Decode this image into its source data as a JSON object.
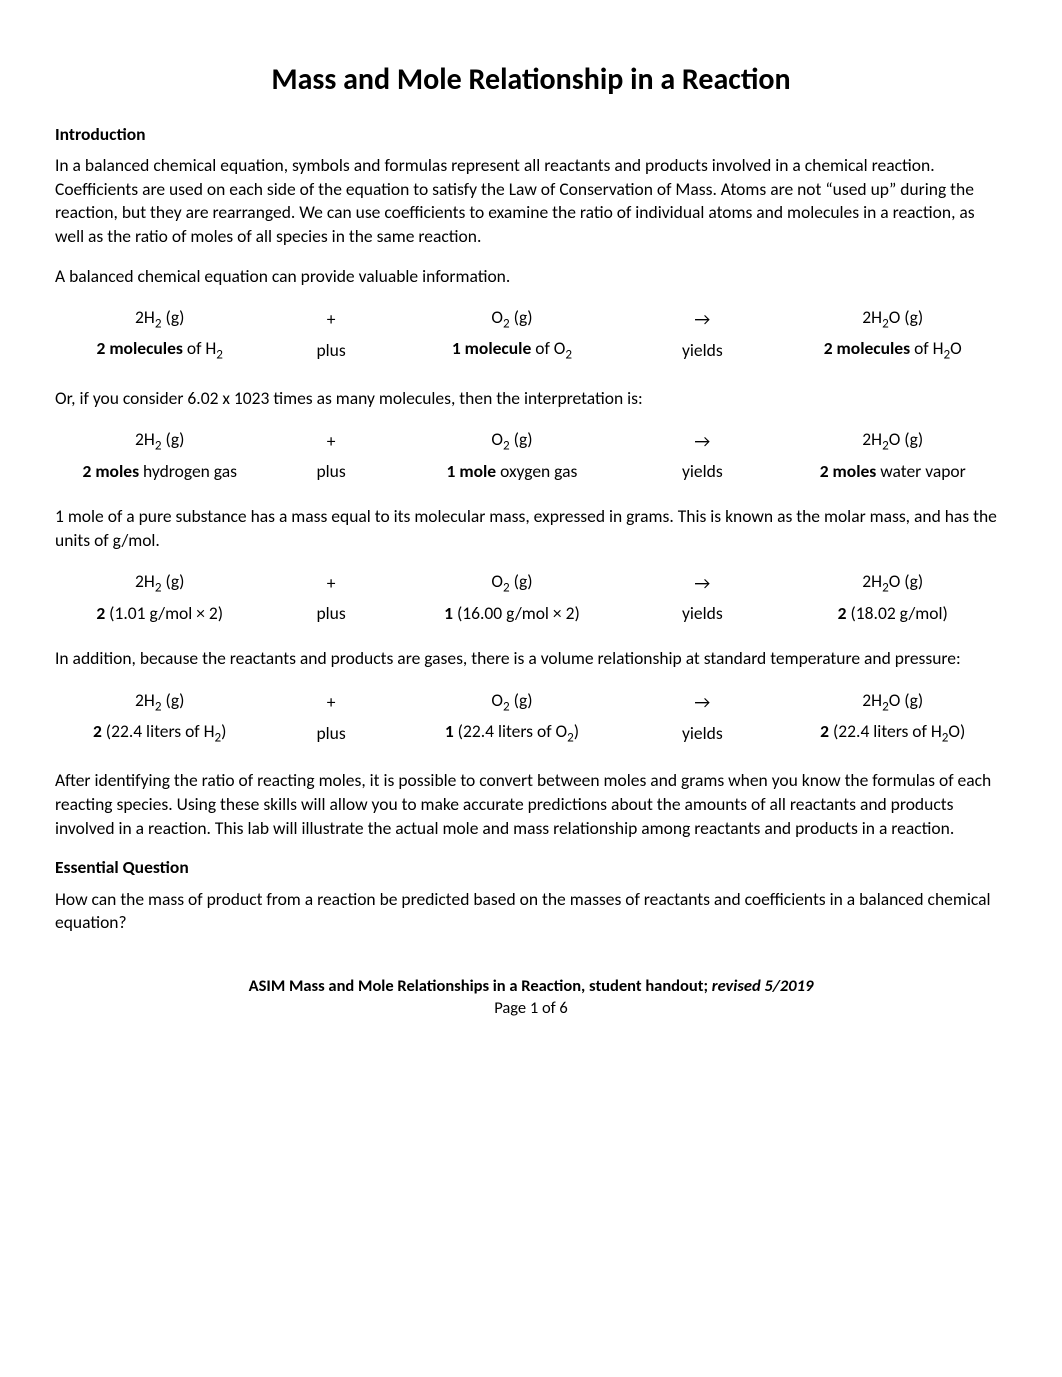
{
  "title": "Mass and Mole Relationship in a Reaction",
  "sections": {
    "intro_head": "Introduction",
    "intro_p1": "In a balanced chemical equation, symbols and formulas represent all reactants and products involved in a chemical reaction.  Coefficients are used on each side of the equation to satisfy the Law of Conservation of Mass.  Atoms are not “used up” during the reaction, but they are rearranged.  We can use coefficients to examine the ratio of individual atoms and molecules in a reaction, as well as the ratio of moles of all species in the same reaction.",
    "intro_p2": "A balanced chemical equation can provide valuable information.",
    "p_or": "Or, if you consider 6.02 x 1023 times as many molecules, then the interpretation is:",
    "p_molarmass": "1 mole of a pure substance has a mass equal to its molecular mass, expressed in grams.  This is known as the molar mass, and has the units of g/mol.",
    "p_volume": "In addition, because the reactants and products are gases, there is a volume relationship at standard temperature and pressure:",
    "p_after": "After identifying the ratio of reacting moles, it is possible to convert between moles and grams when you know the formulas of each reacting species.  Using these skills will allow you to make accurate predictions about the amounts of all reactants and products involved in a reaction.   This lab will illustrate the actual mole and mass relationship among reactants and products in a reaction.",
    "eq_head": "Essential Question",
    "eq_p": "How can the mass of product from a reaction be predicted based on the masses of reactants and coefficients in a balanced chemical equation?"
  },
  "equation_common": {
    "h2_formula_html": "2H<sub>2</sub> (g)",
    "plus_sym": "+",
    "plus_word": "plus",
    "o2_formula_html": "O<sub>2</sub> (g)",
    "arrow_sym": "→",
    "yields_word": "yields",
    "h2o_formula_html": "2H<sub>2</sub>O (g)"
  },
  "table1": {
    "c1_html": "<b>2 molecules</b> of H<sub>2</sub>",
    "c3_html": "<b>1 molecule</b> of O<sub>2</sub>",
    "c5_html": "<b>2 molecules</b> of H<sub>2</sub>O"
  },
  "table2": {
    "c1_html": "<b>2 moles</b> hydrogen gas",
    "c3_html": "<b>1 mole</b> oxygen gas",
    "c5_html": "<b>2 moles</b> water vapor"
  },
  "table3": {
    "c1_html": "<b>2</b> (1.01 g/mol × 2)",
    "c3_html": "<b>1</b> (16.00 g/mol × 2)",
    "c5_html": "<b>2</b> (18.02 g/mol)"
  },
  "table4": {
    "c1_html": "<b>2</b> (22.4 liters of H<sub>2</sub>)",
    "c3_html": "<b>1</b> (22.4 liters of O<sub>2</sub>)",
    "c5_html": "<b>2</b> (22.4 liters of H<sub>2</sub>O)"
  },
  "footer": {
    "line1_prefix": "ASIM Mass and Mole Relationships in a Reaction, student handout; ",
    "line1_rev": "revised 5/2019",
    "line2": "Page 1 of 6"
  }
}
